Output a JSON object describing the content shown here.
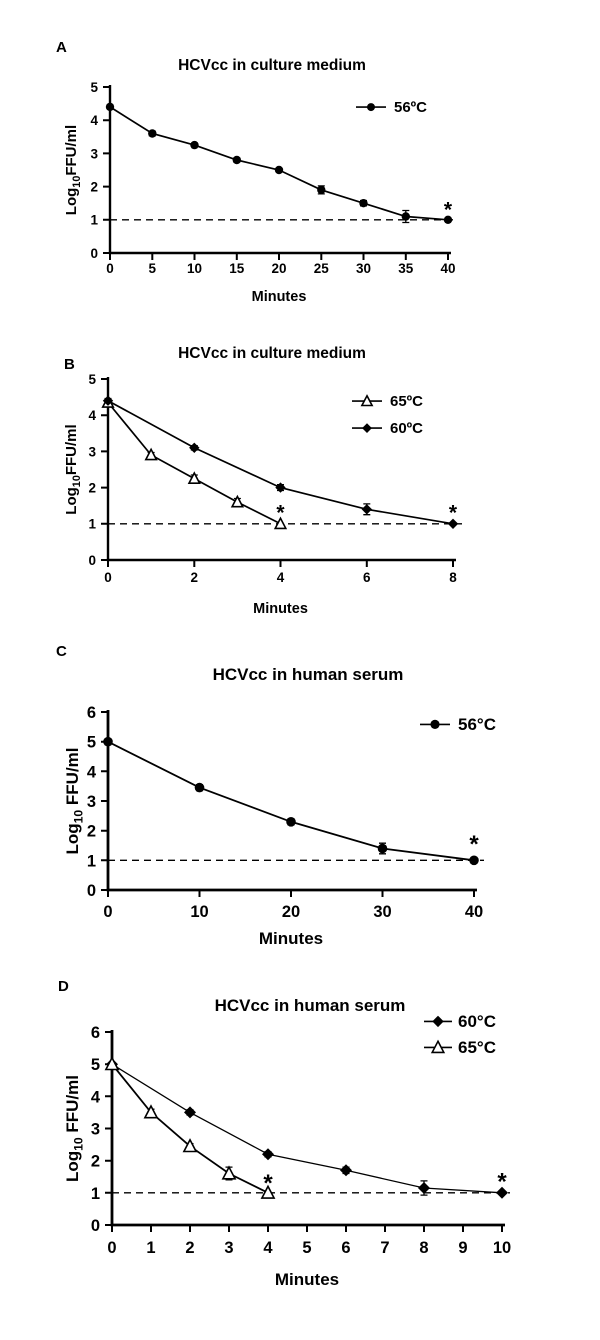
{
  "colors": {
    "foreground": "#000000",
    "background": "#ffffff"
  },
  "chart_data": [
    {
      "type": "line",
      "panel_label": "A",
      "title": "HCVcc in culture medium",
      "xlabel": "Minutes",
      "ylabel": {
        "text": "Log",
        "subscript": "10",
        "suffix": "FFU/ml"
      },
      "xlim": [
        0,
        40
      ],
      "ylim": [
        0,
        5
      ],
      "xticks": [
        0,
        5,
        10,
        15,
        20,
        25,
        30,
        35,
        40
      ],
      "yticks": [
        0,
        1,
        2,
        3,
        4,
        5
      ],
      "grid": false,
      "legend_position": "top-right",
      "detection_limit_y": 1,
      "series": [
        {
          "name": "56ºC",
          "marker": "filled-circle",
          "x": [
            0,
            5,
            10,
            15,
            20,
            25,
            30,
            35,
            40
          ],
          "y": [
            4.4,
            3.6,
            3.25,
            2.8,
            2.5,
            1.9,
            1.5,
            1.1,
            1.0
          ],
          "yerr": [
            0.05,
            0.07,
            0.05,
            0.06,
            0.05,
            0.12,
            0.08,
            0.18,
            0
          ]
        }
      ],
      "annotations": [
        {
          "x": 40,
          "y": 1.35,
          "text": "*"
        }
      ]
    },
    {
      "type": "line",
      "panel_label": "B",
      "title": "HCVcc in culture medium",
      "xlabel": "Minutes",
      "ylabel": {
        "text": "Log",
        "subscript": "10",
        "suffix": "FFU/ml"
      },
      "xlim": [
        0,
        8
      ],
      "ylim": [
        0,
        5
      ],
      "xticks": [
        0,
        2,
        4,
        6,
        8
      ],
      "yticks": [
        0,
        1,
        2,
        3,
        4,
        5
      ],
      "grid": false,
      "legend_position": "top-right",
      "detection_limit_y": 1,
      "series": [
        {
          "name": "65ºC",
          "marker": "open-triangle",
          "x": [
            0,
            1,
            2,
            3,
            4
          ],
          "y": [
            4.35,
            2.9,
            2.25,
            1.6,
            1.0
          ],
          "yerr": [
            0.1,
            0.07,
            0.1,
            0.1,
            0
          ]
        },
        {
          "name": "60ºC",
          "marker": "filled-diamond",
          "x": [
            0,
            2,
            4,
            6,
            8
          ],
          "y": [
            4.4,
            3.1,
            2.0,
            1.4,
            1.0
          ],
          "yerr": [
            0.06,
            0.06,
            0.08,
            0.15,
            0
          ]
        }
      ],
      "annotations": [
        {
          "x": 4,
          "y": 1.35,
          "text": "*"
        },
        {
          "x": 8,
          "y": 1.35,
          "text": "*"
        }
      ]
    },
    {
      "type": "line",
      "panel_label": "C",
      "title": "HCVcc in human serum",
      "xlabel": "Minutes",
      "ylabel": {
        "text": "Log",
        "subscript": "10",
        "suffix": " FFU/ml"
      },
      "xlim": [
        0,
        40
      ],
      "ylim": [
        0,
        6
      ],
      "xticks": [
        0,
        10,
        20,
        30,
        40
      ],
      "yticks": [
        0,
        1,
        2,
        3,
        4,
        5,
        6
      ],
      "grid": false,
      "legend_position": "top-right",
      "detection_limit_y": 1,
      "series": [
        {
          "name": "56°C",
          "marker": "filled-circle",
          "x": [
            0,
            10,
            20,
            30,
            40
          ],
          "y": [
            5.0,
            3.45,
            2.3,
            1.4,
            1.0
          ],
          "yerr": [
            0.06,
            0.1,
            0.1,
            0.18,
            0
          ]
        }
      ],
      "annotations": [
        {
          "x": 40,
          "y": 1.6,
          "text": "*"
        }
      ]
    },
    {
      "type": "line",
      "panel_label": "D",
      "title": "HCVcc in human serum",
      "xlabel": "Minutes",
      "ylabel": {
        "text": "Log",
        "subscript": "10",
        "suffix": " FFU/ml"
      },
      "xlim": [
        0,
        10
      ],
      "ylim": [
        0,
        6
      ],
      "xticks": [
        0,
        1,
        2,
        3,
        4,
        5,
        6,
        7,
        8,
        9,
        10
      ],
      "yticks": [
        0,
        1,
        2,
        3,
        4,
        5,
        6
      ],
      "grid": false,
      "legend_position": "top-right",
      "detection_limit_y": 1,
      "series": [
        {
          "name": "60°C",
          "marker": "filled-diamond",
          "x": [
            0,
            2,
            4,
            6,
            8,
            10
          ],
          "y": [
            5.0,
            3.5,
            2.2,
            1.7,
            1.15,
            1.0
          ],
          "yerr": [
            0.06,
            0.08,
            0.08,
            0.1,
            0.22,
            0
          ]
        },
        {
          "name": "65°C",
          "marker": "open-triangle",
          "x": [
            0,
            1,
            2,
            3,
            4
          ],
          "y": [
            5.0,
            3.5,
            2.45,
            1.6,
            1.0
          ],
          "yerr": [
            0.06,
            0.1,
            0.08,
            0.2,
            0
          ]
        }
      ],
      "annotations": [
        {
          "x": 4,
          "y": 1.35,
          "text": "*"
        },
        {
          "x": 10,
          "y": 1.4,
          "text": "*"
        }
      ]
    }
  ]
}
